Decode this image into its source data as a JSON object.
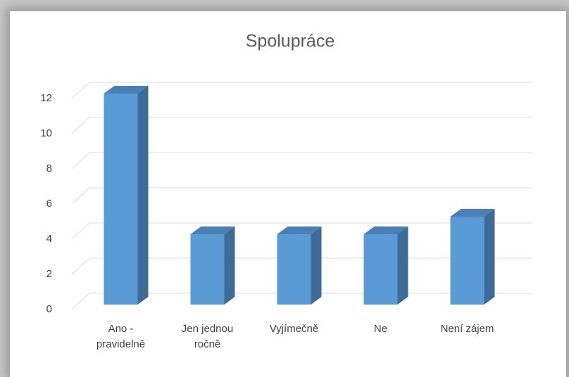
{
  "chart_data": {
    "type": "bar",
    "title": "Spolupráce",
    "categories": [
      "Ano - pravidelně",
      "Jen jednou ročně",
      "Vyjímečně",
      "Ne",
      "Není zájem"
    ],
    "values": [
      12,
      4,
      4,
      4,
      5
    ],
    "color": "#5b9bd5",
    "ylim": [
      0,
      12
    ],
    "yticks": [
      0,
      2,
      4,
      6,
      8,
      10,
      12
    ],
    "grid": true
  }
}
